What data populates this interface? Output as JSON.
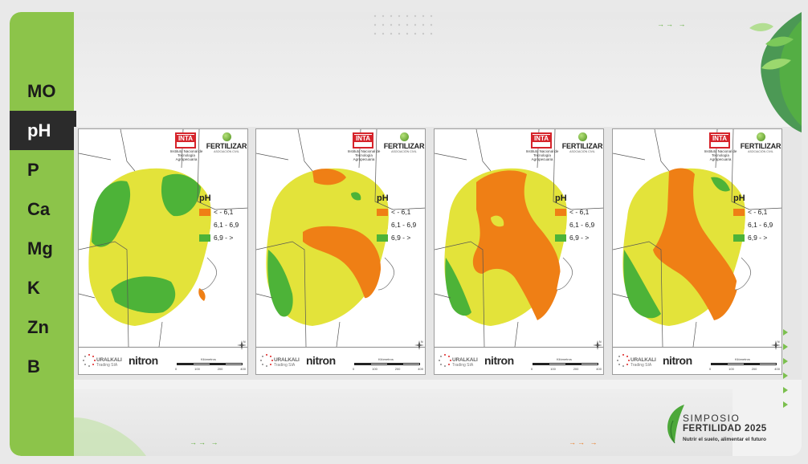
{
  "sidebar": {
    "items": [
      {
        "label": "MO",
        "active": false
      },
      {
        "label": "pH",
        "active": true
      },
      {
        "label": "P",
        "active": false
      },
      {
        "label": "Ca",
        "active": false
      },
      {
        "label": "Mg",
        "active": false
      },
      {
        "label": "K",
        "active": false
      },
      {
        "label": "Zn",
        "active": false
      },
      {
        "label": "B",
        "active": false
      }
    ]
  },
  "colors": {
    "sidebar": "#8cc44a",
    "active_item": "#2b2b2b",
    "low": "#ef7f15",
    "mid": "#e3e33a",
    "high": "#4db338",
    "arrows_green": "#5fae3a",
    "arrows_orange": "#e87a22"
  },
  "arrows": {
    "top": "→→   →",
    "bottom_green": "→→   →",
    "bottom_orange": "→→   →"
  },
  "map_common": {
    "inta_logo": "INTA",
    "inta_caption": "Instituto Nacional de Tecnología Agropecuaria",
    "fertilizar_logo": "FERTILIZAR",
    "fertilizar_sub": "ASOCIACIÓN CIVIL",
    "legend_title": "pH",
    "legend": [
      {
        "label": "< - 6,1",
        "class": "low"
      },
      {
        "label": "6,1 - 6,9",
        "class": "mid"
      },
      {
        "label": "6,9 - >",
        "class": "high"
      }
    ],
    "uralkali_brand": "URALKALI",
    "uralkali_sub": "Trading SIA",
    "nitron": "nitron",
    "scale_title": "Kilómetros",
    "scale_ticks": [
      "0",
      "100",
      "200",
      "400"
    ],
    "compass_letter": "N"
  },
  "maps": [
    {
      "id": "map-1",
      "dominant": "high-and-mid"
    },
    {
      "id": "map-2",
      "dominant": "mid"
    },
    {
      "id": "map-3",
      "dominant": "low-and-mid"
    },
    {
      "id": "map-4",
      "dominant": "low-and-mid"
    }
  ],
  "branding": {
    "line1": "SIMPOSIO",
    "line2": "FERTILIDAD 2025",
    "line3": "Nutrir el suelo, alimentar el futuro"
  }
}
